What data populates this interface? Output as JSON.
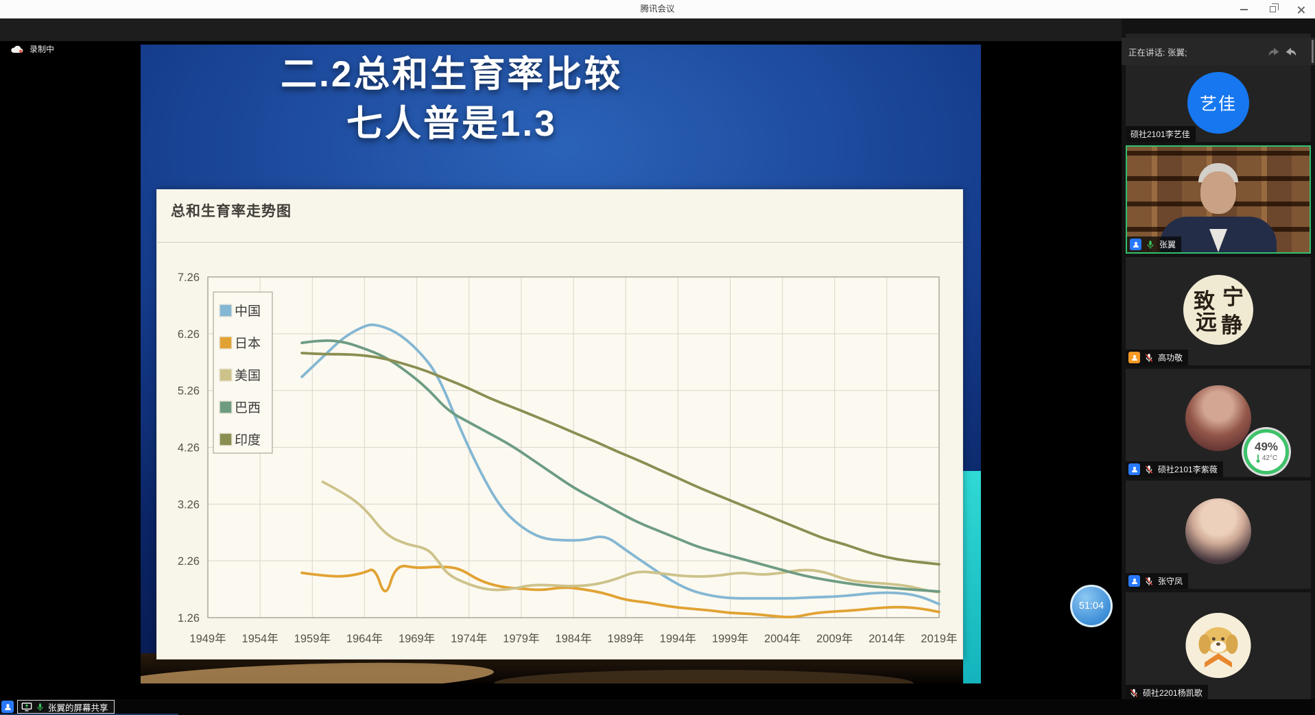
{
  "window": {
    "title": "腾讯会议"
  },
  "recording": {
    "label": "录制中"
  },
  "speaking_banner": {
    "label": "正在讲话: 张翼;"
  },
  "timer": {
    "value": "51:04"
  },
  "share_bar": {
    "label": "张翼的屏幕共享"
  },
  "slide": {
    "title_line1": "二.2总和生育率比较",
    "title_line2": "七人普是1.3"
  },
  "participants": [
    {
      "name": "硕社2101李艺佳",
      "avatar_text": "艺佳",
      "mic": null,
      "badge": null,
      "speaking": false
    },
    {
      "name": "张翼",
      "mic": "on",
      "badge": "blue",
      "speaking": true,
      "video": true
    },
    {
      "name": "高功敬",
      "mic": "muted",
      "badge": "orange",
      "speaking": false,
      "avatar_chars": {
        "tl": "致",
        "tr": "宁",
        "bl": "远",
        "br": "静"
      }
    },
    {
      "name": "硕社2101李紫薇",
      "mic": "muted",
      "badge": "blue",
      "speaking": false,
      "widget": {
        "percent": "49%",
        "temperature": "42°C"
      }
    },
    {
      "name": "张守凤",
      "mic": "muted",
      "badge": "blue",
      "speaking": false
    },
    {
      "name": "硕社2201杨凯歌",
      "mic": "muted",
      "badge": null,
      "speaking": false
    }
  ],
  "colors": {
    "speaking_border_green": "#31c06e",
    "mic_green": "#3bc25a",
    "mute_red": "#e5493d",
    "badge_blue": "#2979ff",
    "badge_orange": "#f59a23",
    "timer_blue": "#3f8fd8",
    "sensor_ring_green": "#3ec26a",
    "slide_blue": "#153c8c",
    "cyan_strip": "#2fd9d4"
  },
  "chart_data": {
    "type": "line",
    "title": "总和生育率走势图",
    "xlabel": "",
    "ylabel": "",
    "x_range": [
      1949,
      2019
    ],
    "y_range": [
      1.26,
      7.26
    ],
    "grid": true,
    "legend_position": "top-left",
    "x_tick_labels": [
      "1949年",
      "1954年",
      "1959年",
      "1964年",
      "1969年",
      "1974年",
      "1979年",
      "1984年",
      "1989年",
      "1994年",
      "1999年",
      "2004年",
      "2009年",
      "2014年",
      "2019年"
    ],
    "y_tick_labels": [
      "7.26",
      "6.26",
      "5.26",
      "4.26",
      "3.26",
      "2.26",
      "1.26"
    ],
    "series": [
      {
        "name": "中国",
        "color": "#84b7d3",
        "points": [
          [
            1958,
            5.5
          ],
          [
            1960,
            5.85
          ],
          [
            1962,
            6.2
          ],
          [
            1964,
            6.4
          ],
          [
            1965,
            6.43
          ],
          [
            1967,
            6.3
          ],
          [
            1969,
            6.0
          ],
          [
            1971,
            5.55
          ],
          [
            1973,
            4.65
          ],
          [
            1975,
            3.85
          ],
          [
            1977,
            3.2
          ],
          [
            1979,
            2.85
          ],
          [
            1981,
            2.65
          ],
          [
            1983,
            2.62
          ],
          [
            1985,
            2.62
          ],
          [
            1987,
            2.72
          ],
          [
            1989,
            2.45
          ],
          [
            1991,
            2.2
          ],
          [
            1993,
            1.95
          ],
          [
            1995,
            1.75
          ],
          [
            1997,
            1.65
          ],
          [
            1999,
            1.6
          ],
          [
            2001,
            1.6
          ],
          [
            2003,
            1.6
          ],
          [
            2005,
            1.6
          ],
          [
            2007,
            1.62
          ],
          [
            2009,
            1.63
          ],
          [
            2011,
            1.66
          ],
          [
            2013,
            1.7
          ],
          [
            2015,
            1.7
          ],
          [
            2017,
            1.65
          ],
          [
            2019,
            1.5
          ]
        ]
      },
      {
        "name": "日本",
        "color": "#e1a233",
        "points": [
          [
            1958,
            2.05
          ],
          [
            1960,
            2.0
          ],
          [
            1962,
            1.98
          ],
          [
            1964,
            2.05
          ],
          [
            1965,
            2.14
          ],
          [
            1966,
            1.58
          ],
          [
            1967,
            2.2
          ],
          [
            1969,
            2.13
          ],
          [
            1971,
            2.16
          ],
          [
            1973,
            2.14
          ],
          [
            1975,
            1.91
          ],
          [
            1977,
            1.8
          ],
          [
            1979,
            1.77
          ],
          [
            1981,
            1.74
          ],
          [
            1983,
            1.8
          ],
          [
            1985,
            1.76
          ],
          [
            1987,
            1.69
          ],
          [
            1989,
            1.57
          ],
          [
            1991,
            1.53
          ],
          [
            1993,
            1.46
          ],
          [
            1995,
            1.42
          ],
          [
            1997,
            1.39
          ],
          [
            1999,
            1.34
          ],
          [
            2001,
            1.33
          ],
          [
            2003,
            1.29
          ],
          [
            2005,
            1.26
          ],
          [
            2007,
            1.34
          ],
          [
            2009,
            1.37
          ],
          [
            2011,
            1.39
          ],
          [
            2013,
            1.43
          ],
          [
            2015,
            1.45
          ],
          [
            2017,
            1.43
          ],
          [
            2019,
            1.36
          ]
        ]
      },
      {
        "name": "美国",
        "color": "#cdc28a",
        "points": [
          [
            1960,
            3.65
          ],
          [
            1962,
            3.46
          ],
          [
            1964,
            3.19
          ],
          [
            1966,
            2.72
          ],
          [
            1968,
            2.55
          ],
          [
            1970,
            2.48
          ],
          [
            1971,
            2.27
          ],
          [
            1972,
            2.01
          ],
          [
            1974,
            1.84
          ],
          [
            1976,
            1.74
          ],
          [
            1978,
            1.76
          ],
          [
            1980,
            1.84
          ],
          [
            1982,
            1.83
          ],
          [
            1984,
            1.81
          ],
          [
            1986,
            1.84
          ],
          [
            1988,
            1.93
          ],
          [
            1990,
            2.08
          ],
          [
            1992,
            2.05
          ],
          [
            1994,
            2.0
          ],
          [
            1996,
            1.98
          ],
          [
            1998,
            2.0
          ],
          [
            2000,
            2.06
          ],
          [
            2002,
            2.01
          ],
          [
            2004,
            2.05
          ],
          [
            2006,
            2.11
          ],
          [
            2008,
            2.07
          ],
          [
            2010,
            1.93
          ],
          [
            2012,
            1.88
          ],
          [
            2014,
            1.86
          ],
          [
            2016,
            1.82
          ],
          [
            2018,
            1.73
          ],
          [
            2019,
            1.71
          ]
        ]
      },
      {
        "name": "巴西",
        "color": "#6d9c83",
        "points": [
          [
            1958,
            6.1
          ],
          [
            1960,
            6.15
          ],
          [
            1962,
            6.12
          ],
          [
            1964,
            6.0
          ],
          [
            1966,
            5.85
          ],
          [
            1968,
            5.6
          ],
          [
            1970,
            5.3
          ],
          [
            1972,
            4.9
          ],
          [
            1974,
            4.7
          ],
          [
            1976,
            4.5
          ],
          [
            1978,
            4.3
          ],
          [
            1980,
            4.05
          ],
          [
            1982,
            3.8
          ],
          [
            1984,
            3.55
          ],
          [
            1986,
            3.35
          ],
          [
            1988,
            3.15
          ],
          [
            1990,
            2.95
          ],
          [
            1992,
            2.8
          ],
          [
            1994,
            2.65
          ],
          [
            1996,
            2.5
          ],
          [
            1998,
            2.4
          ],
          [
            2000,
            2.3
          ],
          [
            2002,
            2.2
          ],
          [
            2004,
            2.1
          ],
          [
            2006,
            2.0
          ],
          [
            2008,
            1.93
          ],
          [
            2010,
            1.87
          ],
          [
            2012,
            1.82
          ],
          [
            2014,
            1.79
          ],
          [
            2016,
            1.76
          ],
          [
            2019,
            1.72
          ]
        ]
      },
      {
        "name": "印度",
        "color": "#8a8e51",
        "points": [
          [
            1958,
            5.92
          ],
          [
            1960,
            5.9
          ],
          [
            1962,
            5.9
          ],
          [
            1964,
            5.88
          ],
          [
            1966,
            5.82
          ],
          [
            1968,
            5.72
          ],
          [
            1970,
            5.6
          ],
          [
            1972,
            5.45
          ],
          [
            1974,
            5.3
          ],
          [
            1976,
            5.12
          ],
          [
            1978,
            4.98
          ],
          [
            1980,
            4.83
          ],
          [
            1982,
            4.68
          ],
          [
            1984,
            4.52
          ],
          [
            1986,
            4.37
          ],
          [
            1988,
            4.2
          ],
          [
            1990,
            4.05
          ],
          [
            1992,
            3.88
          ],
          [
            1994,
            3.72
          ],
          [
            1996,
            3.55
          ],
          [
            1998,
            3.4
          ],
          [
            2000,
            3.25
          ],
          [
            2002,
            3.1
          ],
          [
            2004,
            2.95
          ],
          [
            2006,
            2.8
          ],
          [
            2008,
            2.65
          ],
          [
            2010,
            2.55
          ],
          [
            2012,
            2.42
          ],
          [
            2014,
            2.32
          ],
          [
            2016,
            2.26
          ],
          [
            2019,
            2.2
          ]
        ]
      }
    ]
  }
}
